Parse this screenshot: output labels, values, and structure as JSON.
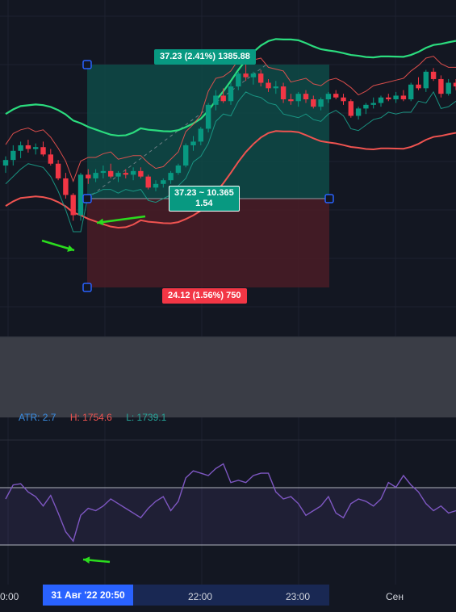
{
  "chart_data": {
    "type": "candlestick",
    "x_ticks": [
      "0:00",
      "22:00",
      "23:00",
      "Сен"
    ],
    "cursor_time_label": "31 Авг '22   20:50",
    "position_tool": {
      "target_label": "37.23 (2.41%) 1385.88",
      "stop_label": "24.12 (1.56%) 750",
      "center_label_line1": "37.23 ~ 10.365",
      "center_label_line2": "1.54"
    },
    "atr_panel": {
      "atr_label": "ATR: 2.7",
      "high_label": "H: 1754.6",
      "low_label": "L: 1739.1"
    },
    "candles": [
      [
        1745.0,
        1747.5,
        1743.0,
        1746.5
      ],
      [
        1746.5,
        1750.5,
        1745.0,
        1749.0
      ],
      [
        1749.0,
        1751.5,
        1747.0,
        1750.5
      ],
      [
        1750.5,
        1752.0,
        1748.5,
        1749.5
      ],
      [
        1749.5,
        1751.0,
        1748.0,
        1750.0
      ],
      [
        1750.0,
        1751.5,
        1747.5,
        1748.0
      ],
      [
        1748.0,
        1749.5,
        1745.0,
        1745.5
      ],
      [
        1745.5,
        1746.5,
        1741.0,
        1741.5
      ],
      [
        1741.5,
        1743.0,
        1736.0,
        1737.0
      ],
      [
        1737.0,
        1737.5,
        1730.0,
        1731.5
      ],
      [
        1731.5,
        1743.0,
        1730.0,
        1742.5
      ],
      [
        1742.5,
        1744.0,
        1740.0,
        1741.5
      ],
      [
        1741.5,
        1744.0,
        1740.5,
        1743.0
      ],
      [
        1743.0,
        1745.0,
        1741.5,
        1743.5
      ],
      [
        1743.5,
        1745.5,
        1741.5,
        1742.0
      ],
      [
        1742.0,
        1743.5,
        1740.5,
        1743.0
      ],
      [
        1743.0,
        1744.0,
        1741.5,
        1742.5
      ],
      [
        1742.5,
        1744.5,
        1741.0,
        1743.5
      ],
      [
        1743.5,
        1744.5,
        1741.5,
        1742.0
      ],
      [
        1742.0,
        1742.5,
        1738.5,
        1739.0
      ],
      [
        1739.0,
        1741.0,
        1738.0,
        1740.0
      ],
      [
        1740.0,
        1741.5,
        1739.0,
        1741.0
      ],
      [
        1741.0,
        1743.5,
        1740.0,
        1743.0
      ],
      [
        1743.0,
        1745.5,
        1742.5,
        1745.0
      ],
      [
        1745.0,
        1751.0,
        1744.5,
        1750.5
      ],
      [
        1750.5,
        1753.0,
        1749.0,
        1751.5
      ],
      [
        1751.5,
        1755.5,
        1750.5,
        1755.0
      ],
      [
        1755.0,
        1762.0,
        1754.0,
        1761.5
      ],
      [
        1761.5,
        1765.5,
        1760.0,
        1764.0
      ],
      [
        1764.0,
        1766.0,
        1762.0,
        1762.5
      ],
      [
        1762.5,
        1767.5,
        1761.5,
        1766.5
      ],
      [
        1766.5,
        1770.5,
        1765.5,
        1770.0
      ],
      [
        1770.0,
        1772.5,
        1768.0,
        1769.0
      ],
      [
        1769.0,
        1770.5,
        1767.0,
        1770.0
      ],
      [
        1770.0,
        1771.0,
        1766.5,
        1767.5
      ],
      [
        1767.5,
        1768.5,
        1765.0,
        1766.0
      ],
      [
        1766.0,
        1768.0,
        1764.5,
        1766.5
      ],
      [
        1766.5,
        1767.5,
        1762.0,
        1763.0
      ],
      [
        1763.0,
        1764.5,
        1761.5,
        1762.5
      ],
      [
        1762.5,
        1765.0,
        1761.0,
        1764.5
      ],
      [
        1764.5,
        1765.5,
        1762.0,
        1763.0
      ],
      [
        1763.0,
        1764.0,
        1760.5,
        1761.0
      ],
      [
        1761.0,
        1763.5,
        1760.0,
        1763.0
      ],
      [
        1763.0,
        1765.0,
        1762.0,
        1764.5
      ],
      [
        1764.5,
        1765.5,
        1763.0,
        1763.5
      ],
      [
        1763.5,
        1764.5,
        1761.5,
        1762.5
      ],
      [
        1762.5,
        1763.0,
        1758.0,
        1758.5
      ],
      [
        1758.5,
        1761.0,
        1757.5,
        1760.5
      ],
      [
        1760.5,
        1762.0,
        1759.0,
        1761.5
      ],
      [
        1761.5,
        1763.5,
        1760.5,
        1762.0
      ],
      [
        1762.0,
        1764.0,
        1761.0,
        1763.5
      ],
      [
        1763.5,
        1764.5,
        1762.5,
        1763.0
      ],
      [
        1763.0,
        1765.0,
        1762.0,
        1764.0
      ],
      [
        1764.0,
        1765.5,
        1762.5,
        1763.0
      ],
      [
        1763.0,
        1767.5,
        1762.5,
        1767.0
      ],
      [
        1767.0,
        1769.0,
        1765.5,
        1766.0
      ],
      [
        1766.0,
        1771.0,
        1765.0,
        1770.5
      ],
      [
        1770.5,
        1771.5,
        1768.0,
        1768.5
      ],
      [
        1768.5,
        1769.5,
        1763.5,
        1764.5
      ],
      [
        1764.5,
        1768.5,
        1764.0,
        1767.5
      ],
      [
        1767.5,
        1768.5,
        1765.5,
        1766.5
      ]
    ],
    "rsi": [
      60,
      72,
      73,
      66,
      62,
      54,
      63,
      48,
      32,
      24,
      46,
      52,
      50,
      54,
      60,
      56,
      52,
      48,
      44,
      52,
      58,
      62,
      50,
      58,
      78,
      84,
      82,
      80,
      86,
      90,
      74,
      76,
      74,
      80,
      82,
      82,
      66,
      60,
      62,
      56,
      46,
      50,
      54,
      62,
      48,
      44,
      56,
      60,
      58,
      54,
      60,
      74,
      70,
      80,
      72,
      66,
      56,
      50,
      54,
      48,
      50
    ],
    "colors": {
      "bull": "#089981",
      "bear": "#f23645",
      "sma": "#2bdc7e",
      "lower": "#ef5350",
      "rsi": "#7e57c2",
      "profit_zone": "#0e4a46",
      "loss_zone": "#4a1c26",
      "arrow": "#2bdc1e"
    }
  }
}
